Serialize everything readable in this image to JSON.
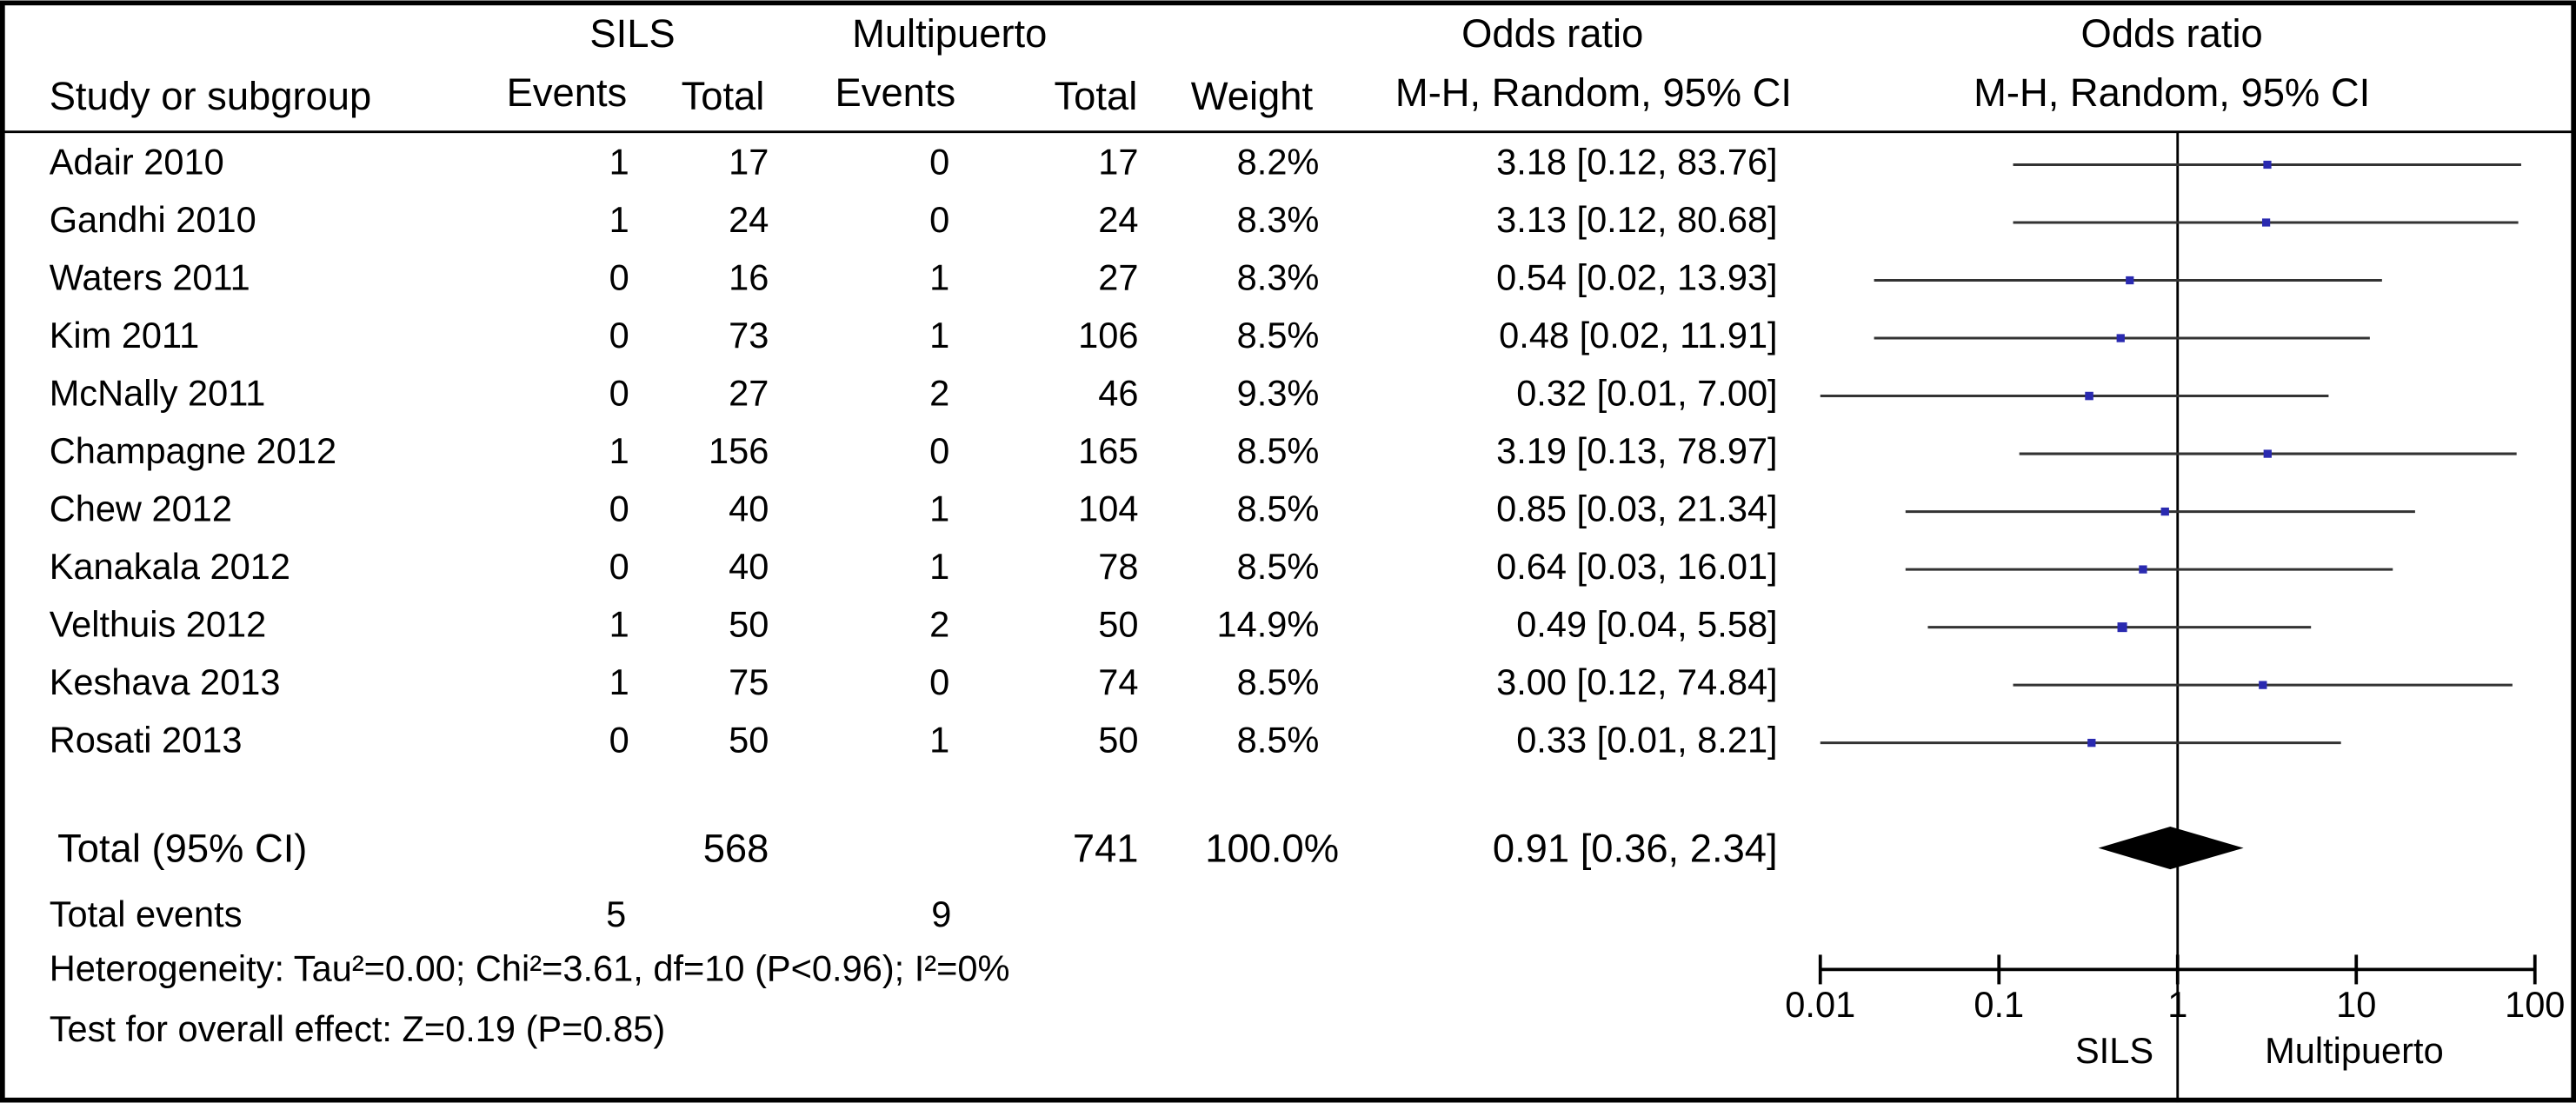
{
  "headers": {
    "sils": "SILS",
    "multipuerto": "Multipuerto",
    "study": "Study or subgroup",
    "events": "Events",
    "total": "Total",
    "weight": "Weight",
    "or_title": "Odds ratio",
    "or_sub": "M-H, Random, 95% CI"
  },
  "studies": [
    {
      "name": "Adair 2010",
      "sils_events": 1,
      "sils_total": 17,
      "mp_events": 0,
      "mp_total": 17
    },
    {
      "name": "Gandhi 2010",
      "sils_events": 1,
      "sils_total": 24,
      "mp_events": 0,
      "mp_total": 24
    },
    {
      "name": "Waters 2011",
      "sils_events": 0,
      "sils_total": 16,
      "mp_events": 1,
      "mp_total": 27
    },
    {
      "name": "Kim 2011",
      "sils_events": 0,
      "sils_total": 73,
      "mp_events": 1,
      "mp_total": 106
    },
    {
      "name": "McNally 2011",
      "sils_events": 0,
      "sils_total": 27,
      "mp_events": 2,
      "mp_total": 46
    },
    {
      "name": "Champagne 2012",
      "sils_events": 1,
      "sils_total": 156,
      "mp_events": 0,
      "mp_total": 165
    },
    {
      "name": "Chew 2012",
      "sils_events": 0,
      "sils_total": 40,
      "mp_events": 1,
      "mp_total": 104
    },
    {
      "name": "Kanakala 2012",
      "sils_events": 0,
      "sils_total": 40,
      "mp_events": 1,
      "mp_total": 78
    },
    {
      "name": "Velthuis 2012",
      "sils_events": 1,
      "sils_total": 50,
      "mp_events": 2,
      "mp_total": 50
    },
    {
      "name": "Keshava 2013",
      "sils_events": 1,
      "sils_total": 75,
      "mp_events": 0,
      "mp_total": 74
    },
    {
      "name": "Rosati 2013",
      "sils_events": 0,
      "sils_total": 50,
      "mp_events": 1,
      "mp_total": 50
    }
  ],
  "total": {
    "label": "Total (95% CI)",
    "sils_total": 568,
    "mp_total": 741
  },
  "footer": {
    "total_events": "Total events",
    "sils_events": 5,
    "mp_events": 9,
    "heterogeneity": "Heterogeneity: Tau²=0.00; Chi²=3.61, df=10 (P<0.96); I²=0%",
    "overall_effect": "Test for overall effect: Z=0.19 (P=0.85)"
  },
  "chart_data": {
    "type": "forest",
    "title": "Odds ratio",
    "subtitle": "M-H, Random, 95% CI",
    "values": [
      3.18,
      3.13,
      0.54,
      0.48,
      0.32,
      3.19,
      0.85,
      0.64,
      0.49,
      3.0,
      0.33
    ],
    "lower": [
      0.12,
      0.12,
      0.02,
      0.02,
      0.01,
      0.13,
      0.03,
      0.03,
      0.04,
      0.12,
      0.01
    ],
    "upper": [
      83.76,
      80.68,
      13.93,
      11.91,
      7.0,
      78.97,
      21.34,
      16.01,
      5.58,
      74.84,
      8.21
    ],
    "value_labels": [
      "3.18 [0.12, 83.76]",
      "3.13 [0.12, 80.68]",
      "0.54 [0.02, 13.93]",
      "0.48 [0.02, 11.91]",
      "0.32 [0.01, 7.00]",
      "3.19 [0.13, 78.97]",
      "0.85 [0.03, 21.34]",
      "0.64 [0.03, 16.01]",
      "0.49 [0.04, 5.58]",
      "3.00 [0.12, 74.84]",
      "0.33 [0.01, 8.21]"
    ],
    "weights": [
      8.2,
      8.3,
      8.3,
      8.5,
      9.3,
      8.5,
      8.5,
      8.5,
      14.9,
      8.5,
      8.5
    ],
    "weight_labels": [
      "8.2%",
      "8.3%",
      "8.3%",
      "8.5%",
      "9.3%",
      "8.5%",
      "8.5%",
      "8.5%",
      "14.9%",
      "8.5%",
      "8.5%"
    ],
    "total": {
      "value": 0.91,
      "lower": 0.36,
      "upper": 2.34,
      "weight": 100.0,
      "weight_label": "100.0%",
      "value_label": "0.91 [0.36, 2.34]"
    },
    "xlim": [
      0.01,
      100
    ],
    "xticks": [
      0.01,
      0.1,
      1,
      10,
      100
    ],
    "log_x": true,
    "favours_left": "SILS",
    "favours_right": "Multipuerto",
    "color": "#2a2ab0"
  }
}
